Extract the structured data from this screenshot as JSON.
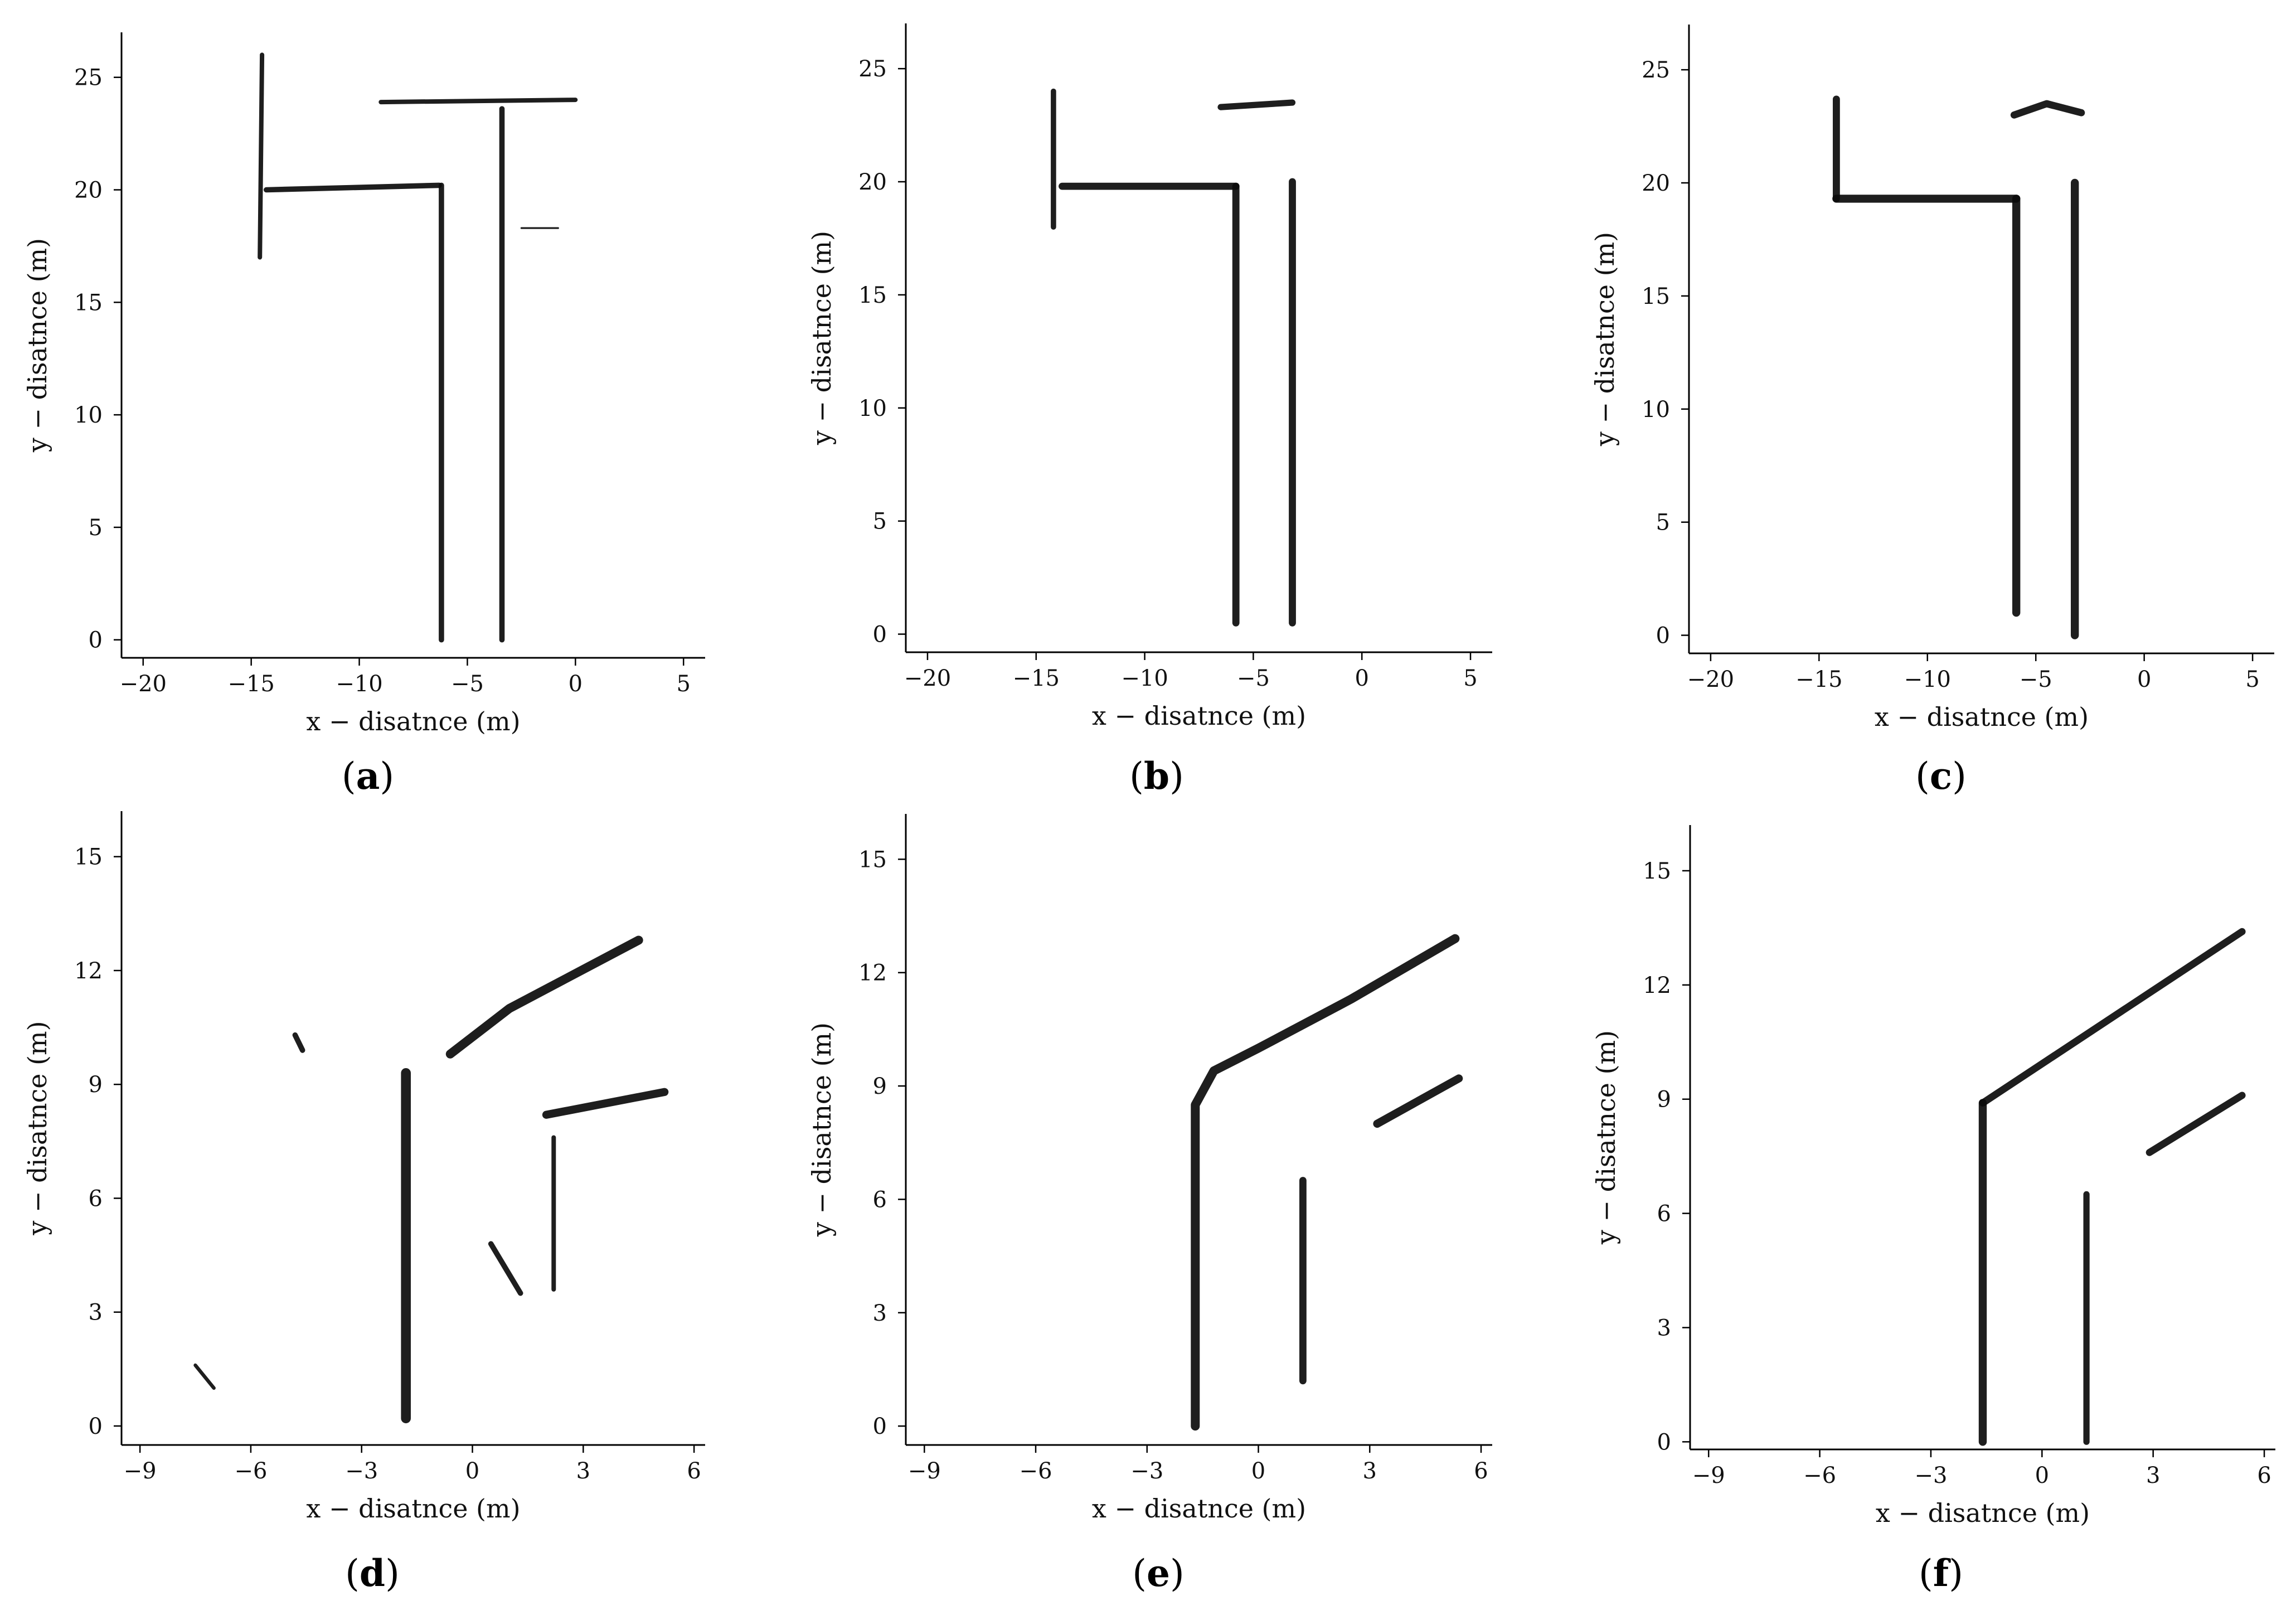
{
  "chart_data": [
    {
      "panel": "a",
      "type": "map",
      "xlabel": "x − disatnce (m)",
      "ylabel": "y − disatnce (m)",
      "xlim": [
        -21,
        6
      ],
      "ylim": [
        -0.8,
        27
      ],
      "xticks": [
        -20,
        -15,
        -10,
        -5,
        0,
        5
      ],
      "xtick_labels": [
        "−20",
        "−15",
        "−10",
        "−5",
        "0",
        "5"
      ],
      "yticks": [
        0,
        5,
        10,
        15,
        20,
        25
      ],
      "ytick_labels": [
        "0",
        "5",
        "10",
        "15",
        "20",
        "25"
      ],
      "walls": [
        {
          "points": [
            [
              -14.6,
              17
            ],
            [
              -14.5,
              26
            ]
          ],
          "weight": 2.5
        },
        {
          "points": [
            [
              -14.3,
              20
            ],
            [
              -6.3,
              20.2
            ]
          ],
          "weight": 3
        },
        {
          "points": [
            [
              -9,
              23.9
            ],
            [
              0,
              24
            ]
          ],
          "weight": 2.5
        },
        {
          "points": [
            [
              -6.2,
              20.2
            ],
            [
              -6.2,
              0
            ]
          ],
          "weight": 3
        },
        {
          "points": [
            [
              -3.4,
              23.6
            ],
            [
              -3.4,
              0
            ]
          ],
          "weight": 3
        },
        {
          "points": [
            [
              -2.5,
              18.3
            ],
            [
              -0.8,
              18.3
            ]
          ],
          "weight": 1
        }
      ],
      "label_prefix": "(",
      "label_letter": "a",
      "label_suffix": ")"
    },
    {
      "panel": "b",
      "type": "map",
      "xlabel": "x − disatnce (m)",
      "ylabel": "y − disatnce (m)",
      "xlim": [
        -21,
        6
      ],
      "ylim": [
        -0.8,
        27
      ],
      "xticks": [
        -20,
        -15,
        -10,
        -5,
        0,
        5
      ],
      "xtick_labels": [
        "−20",
        "−15",
        "−10",
        "−5",
        "0",
        "5"
      ],
      "yticks": [
        0,
        5,
        10,
        15,
        20,
        25
      ],
      "ytick_labels": [
        "0",
        "5",
        "10",
        "15",
        "20",
        "25"
      ],
      "walls": [
        {
          "points": [
            [
              -14.2,
              18
            ],
            [
              -14.2,
              24
            ]
          ],
          "weight": 3
        },
        {
          "points": [
            [
              -13.8,
              19.8
            ],
            [
              -5.8,
              19.8
            ]
          ],
          "weight": 4
        },
        {
          "points": [
            [
              -6.5,
              23.3
            ],
            [
              -3.2,
              23.5
            ]
          ],
          "weight": 3.5
        },
        {
          "points": [
            [
              -5.8,
              19.8
            ],
            [
              -5.8,
              0.5
            ]
          ],
          "weight": 4
        },
        {
          "points": [
            [
              -3.2,
              20
            ],
            [
              -3.2,
              0.5
            ]
          ],
          "weight": 4
        }
      ],
      "label_prefix": "(",
      "label_letter": "b",
      "label_suffix": ")"
    },
    {
      "panel": "c",
      "type": "map",
      "xlabel": "x − disatnce (m)",
      "ylabel": "y − disatnce (m)",
      "xlim": [
        -21,
        6
      ],
      "ylim": [
        -0.8,
        27
      ],
      "xticks": [
        -20,
        -15,
        -10,
        -5,
        0,
        5
      ],
      "xtick_labels": [
        "−20",
        "−15",
        "−10",
        "−5",
        "0",
        "5"
      ],
      "yticks": [
        0,
        5,
        10,
        15,
        20,
        25
      ],
      "ytick_labels": [
        "0",
        "5",
        "10",
        "15",
        "20",
        "25"
      ],
      "walls": [
        {
          "points": [
            [
              -14.2,
              19.3
            ],
            [
              -14.2,
              23.7
            ]
          ],
          "weight": 4
        },
        {
          "points": [
            [
              -14.2,
              19.3
            ],
            [
              -5.9,
              19.3
            ]
          ],
          "weight": 4.5
        },
        {
          "points": [
            [
              -6,
              23
            ],
            [
              -4.5,
              23.5
            ],
            [
              -2.9,
              23.1
            ]
          ],
          "weight": 4
        },
        {
          "points": [
            [
              -5.9,
              19.3
            ],
            [
              -5.9,
              1
            ]
          ],
          "weight": 4.5
        },
        {
          "points": [
            [
              -3.2,
              20
            ],
            [
              -3.2,
              0
            ]
          ],
          "weight": 4.5
        }
      ],
      "label_prefix": "(",
      "label_letter": "c",
      "label_suffix": ")"
    },
    {
      "panel": "d",
      "type": "map",
      "xlabel": "x − disatnce (m)",
      "ylabel": "y − disatnce (m)",
      "xlim": [
        -9.5,
        6.3
      ],
      "ylim": [
        -0.5,
        16.2
      ],
      "xticks": [
        -9,
        -6,
        -3,
        0,
        3,
        6
      ],
      "xtick_labels": [
        "−9",
        "−6",
        "−3",
        "0",
        "3",
        "6"
      ],
      "yticks": [
        0,
        3,
        6,
        9,
        12,
        15
      ],
      "ytick_labels": [
        "0",
        "3",
        "6",
        "9",
        "12",
        "15"
      ],
      "walls": [
        {
          "points": [
            [
              -1.8,
              9.3
            ],
            [
              -1.8,
              0.2
            ]
          ],
          "weight": 5.5
        },
        {
          "points": [
            [
              -0.6,
              9.8
            ],
            [
              1,
              11
            ],
            [
              4.5,
              12.8
            ]
          ],
          "weight": 5
        },
        {
          "points": [
            [
              2,
              8.2
            ],
            [
              5.2,
              8.8
            ]
          ],
          "weight": 4.5
        },
        {
          "points": [
            [
              2.2,
              7.6
            ],
            [
              2.2,
              3.6
            ]
          ],
          "weight": 2.5
        },
        {
          "points": [
            [
              0.5,
              4.8
            ],
            [
              1.3,
              3.5
            ]
          ],
          "weight": 3
        },
        {
          "points": [
            [
              -4.8,
              10.3
            ],
            [
              -4.6,
              9.9
            ]
          ],
          "weight": 3
        },
        {
          "points": [
            [
              -7.5,
              1.6
            ],
            [
              -7,
              1
            ]
          ],
          "weight": 2
        }
      ],
      "label_prefix": "(",
      "label_letter": "d",
      "label_suffix": ")"
    },
    {
      "panel": "e",
      "type": "map",
      "xlabel": "x − disatnce (m)",
      "ylabel": "y − disatnce (m)",
      "xlim": [
        -9.5,
        6.3
      ],
      "ylim": [
        -0.5,
        16.2
      ],
      "xticks": [
        -9,
        -6,
        -3,
        0,
        3,
        6
      ],
      "xtick_labels": [
        "−9",
        "−6",
        "−3",
        "0",
        "3",
        "6"
      ],
      "yticks": [
        0,
        3,
        6,
        9,
        12,
        15
      ],
      "ytick_labels": [
        "0",
        "3",
        "6",
        "9",
        "12",
        "15"
      ],
      "walls": [
        {
          "points": [
            [
              -1.7,
              0
            ],
            [
              -1.7,
              8.5
            ],
            [
              -1.2,
              9.4
            ],
            [
              0,
              10
            ],
            [
              2.5,
              11.3
            ],
            [
              5.3,
              12.9
            ]
          ],
          "weight": 5
        },
        {
          "points": [
            [
              3.2,
              8
            ],
            [
              5.4,
              9.2
            ]
          ],
          "weight": 4.5
        },
        {
          "points": [
            [
              1.2,
              6.5
            ],
            [
              1.2,
              1.2
            ]
          ],
          "weight": 4
        }
      ],
      "label_prefix": "(",
      "label_letter": "e",
      "label_suffix": ")"
    },
    {
      "panel": "f",
      "type": "map",
      "xlabel": "x − disatnce (m)",
      "ylabel": "y − disatnce (m)",
      "xlim": [
        -9.5,
        6.3
      ],
      "ylim": [
        -0.2,
        16.2
      ],
      "xticks": [
        -9,
        -6,
        -3,
        0,
        3,
        6
      ],
      "xtick_labels": [
        "−9",
        "−6",
        "−3",
        "0",
        "3",
        "6"
      ],
      "yticks": [
        0,
        3,
        6,
        9,
        12,
        15
      ],
      "ytick_labels": [
        "0",
        "3",
        "6",
        "9",
        "12",
        "15"
      ],
      "walls": [
        {
          "points": [
            [
              -1.6,
              0
            ],
            [
              -1.6,
              8.9
            ]
          ],
          "weight": 4.5
        },
        {
          "points": [
            [
              -1.6,
              8.9
            ],
            [
              5.4,
              13.4
            ]
          ],
          "weight": 4
        },
        {
          "points": [
            [
              2.9,
              7.6
            ],
            [
              5.4,
              9.1
            ]
          ],
          "weight": 4
        },
        {
          "points": [
            [
              1.2,
              6.5
            ],
            [
              1.2,
              0
            ]
          ],
          "weight": 3.5
        }
      ],
      "label_prefix": "(",
      "label_letter": "f",
      "label_suffix": ")"
    }
  ]
}
